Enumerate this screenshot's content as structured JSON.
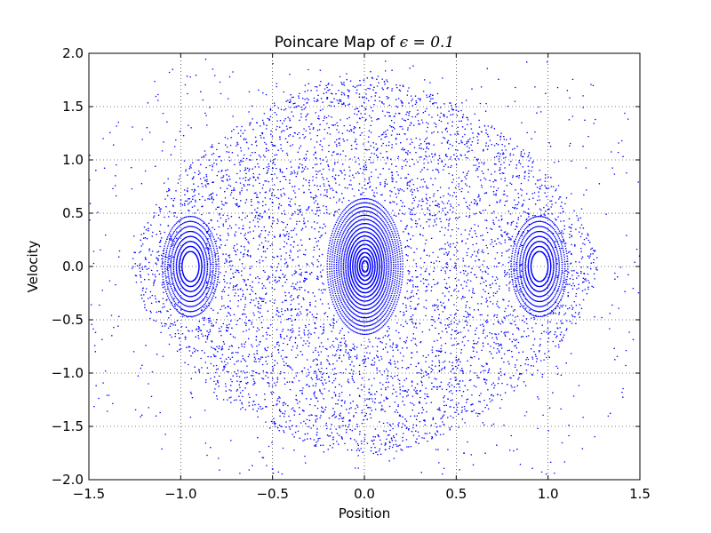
{
  "chart_data": {
    "type": "scatter",
    "title_prefix": "Poincare Map of ",
    "title_math": "ϵ = 0.1",
    "xlabel": "Position",
    "ylabel": "Velocity",
    "xlim": [
      -1.5,
      1.5
    ],
    "ylim": [
      -2.0,
      2.0
    ],
    "xticks": [
      -1.5,
      -1.0,
      -0.5,
      0.0,
      0.5,
      1.0,
      1.5
    ],
    "xtick_labels": [
      "−1.5",
      "−1.0",
      "−0.5",
      "0.0",
      "0.5",
      "1.0",
      "1.5"
    ],
    "yticks": [
      -2.0,
      -1.5,
      -1.0,
      -0.5,
      0.0,
      0.5,
      1.0,
      1.5,
      2.0
    ],
    "ytick_labels": [
      "−2.0",
      "−1.5",
      "−1.0",
      "−0.5",
      "0.0",
      "0.5",
      "1.0",
      "1.5",
      "2.0"
    ],
    "grid": true,
    "point_color": "#0000ff",
    "regions": {
      "chaotic_sea": {
        "x_extent": 1.27,
        "y_extent": 1.78,
        "shape": "rounded-diamond"
      },
      "central_island": {
        "x_semi_axis": 0.21,
        "y_semi_axis": 0.65
      },
      "side_islands": [
        {
          "x_center": -0.95,
          "x_semi_axis": 0.07,
          "y_semi_axis": 0.47
        },
        {
          "x_center": 0.95,
          "x_semi_axis": 0.07,
          "y_semi_axis": 0.47
        }
      ],
      "outer_scatter": {
        "x_extent": 1.5,
        "y_extent": 1.95
      }
    }
  }
}
